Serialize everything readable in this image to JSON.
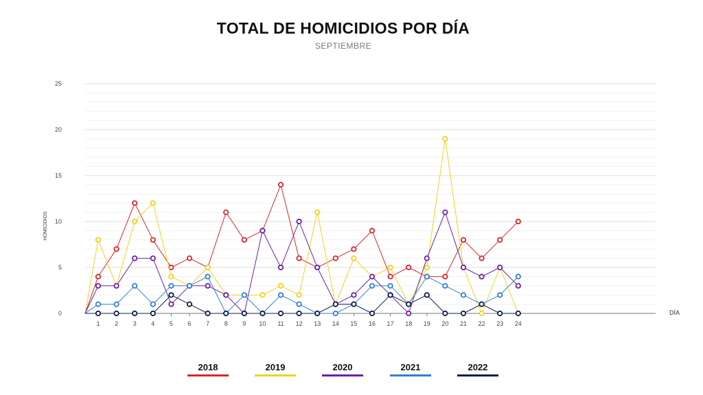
{
  "colors": {
    "s2018": "#d8262c",
    "s2019": "#f0d21c",
    "s2020": "#6a1fa8",
    "s2021": "#2f7fd8",
    "s2022": "#0e1d4a",
    "grid": "#e6e6e6",
    "axis": "#777777"
  },
  "chart_data": {
    "type": "line",
    "title": "TOTAL DE HOMICIDIOS POR DÍA",
    "subtitle": "SEPTIEMBRE",
    "xlabel": "DÍA",
    "ylabel": "HOMICIDIOS",
    "ylim": [
      0,
      25
    ],
    "yticks": [
      "0",
      "5",
      "10",
      "15",
      "20",
      "25"
    ],
    "categories": [
      "1",
      "2",
      "3",
      "4",
      "5",
      "6",
      "7",
      "8",
      "9",
      "10",
      "11",
      "12",
      "13",
      "14",
      "15",
      "16",
      "17",
      "18",
      "19",
      "20",
      "21",
      "22",
      "23",
      "24"
    ],
    "grid": true,
    "legend_position": "bottom",
    "series": [
      {
        "name": "2018",
        "color_key": "s2018",
        "values": [
          4,
          7,
          12,
          8,
          5,
          6,
          5,
          11,
          8,
          9,
          14,
          6,
          5,
          6,
          7,
          9,
          4,
          5,
          4,
          4,
          8,
          6,
          8,
          10
        ]
      },
      {
        "name": "2019",
        "color_key": "s2019",
        "values": [
          8,
          3,
          10,
          12,
          4,
          3,
          5,
          2,
          2,
          2,
          3,
          2,
          11,
          1,
          6,
          4,
          5,
          1,
          5,
          19,
          5,
          0,
          5,
          0
        ]
      },
      {
        "name": "2020",
        "color_key": "s2020",
        "values": [
          3,
          3,
          6,
          6,
          1,
          3,
          3,
          2,
          0,
          9,
          5,
          10,
          5,
          1,
          2,
          4,
          2,
          0,
          6,
          11,
          5,
          4,
          5,
          3
        ]
      },
      {
        "name": "2021",
        "color_key": "s2021",
        "values": [
          1,
          1,
          3,
          1,
          3,
          3,
          4,
          0,
          2,
          0,
          2,
          1,
          0,
          0,
          1,
          3,
          3,
          1,
          4,
          3,
          2,
          1,
          2,
          4
        ]
      },
      {
        "name": "2022",
        "color_key": "s2022",
        "values": [
          0,
          0,
          0,
          0,
          2,
          1,
          0,
          0,
          0,
          0,
          0,
          0,
          0,
          1,
          1,
          0,
          2,
          1,
          2,
          0,
          0,
          1,
          0,
          0
        ]
      }
    ]
  }
}
